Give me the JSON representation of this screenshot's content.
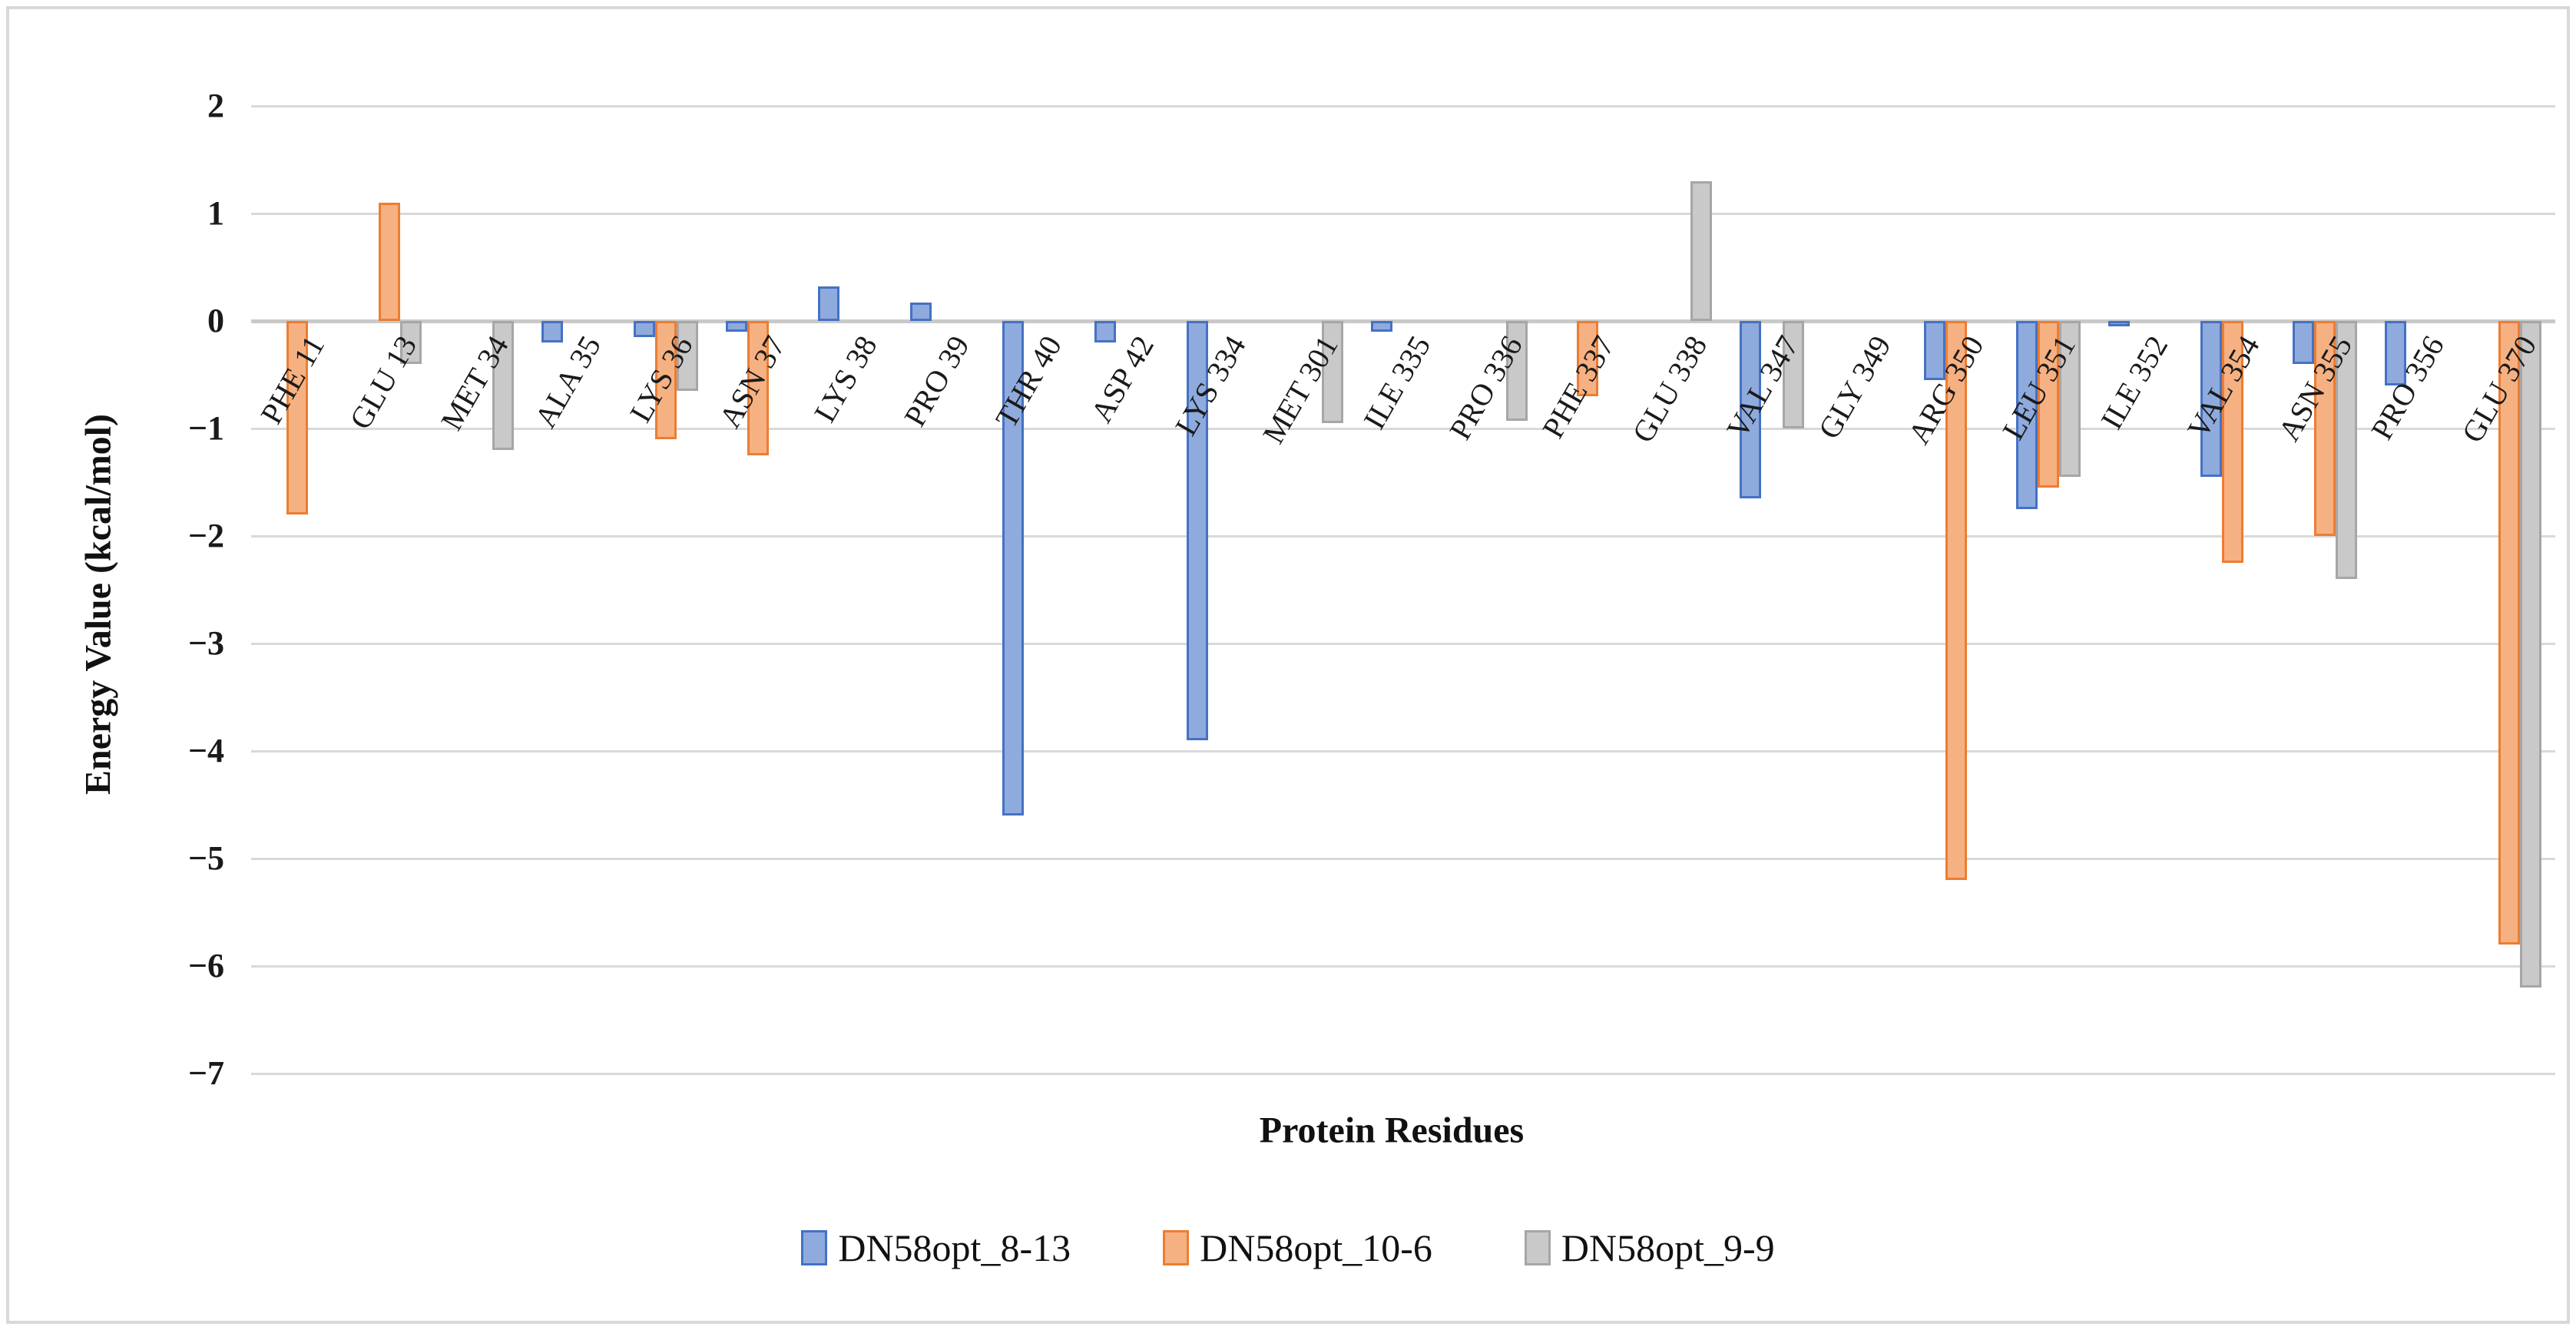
{
  "chart_data": {
    "type": "bar",
    "title": "",
    "xlabel": "Protein Residues",
    "ylabel": "Energy Value (kcal/mol)",
    "ylim": [
      -7,
      2
    ],
    "ytick_step": 1,
    "yticks": [
      2,
      1,
      0,
      -1,
      -2,
      -3,
      -4,
      -5,
      -6,
      -7
    ],
    "grid": true,
    "legend_position": "bottom",
    "categories": [
      "PHE 11",
      "GLU 13",
      "MET 34",
      "ALA 35",
      "LYS 36",
      "ASN 37",
      "LYS 38",
      "PRO 39",
      "THR 40",
      "ASP 42",
      "LYS 334",
      "MET 301",
      "ILE 335",
      "PRO 336",
      "PHE 337",
      "GLU 338",
      "VAL 347",
      "GLY 349",
      "ARG 350",
      "LEU 351",
      "ILE 352",
      "VAL 354",
      "ASN 355",
      "PRO 356",
      "GLU 370"
    ],
    "series": [
      {
        "name": "DN58opt_8-13",
        "fill": "#8FAADC",
        "border": "#4472C4",
        "values": [
          0,
          0,
          0,
          -0.2,
          -0.15,
          -0.1,
          0.32,
          0.17,
          -4.6,
          -0.2,
          -3.9,
          0,
          -0.1,
          0,
          0,
          0,
          -1.65,
          0,
          -0.55,
          -1.75,
          -0.05,
          -1.45,
          -0.4,
          -0.6,
          0
        ]
      },
      {
        "name": "DN58opt_10-6",
        "fill": "#F6B183",
        "border": "#ED7D31",
        "values": [
          -1.8,
          1.1,
          0,
          0,
          -1.1,
          -1.25,
          0,
          0,
          0,
          0,
          0,
          0,
          0,
          0,
          -0.7,
          0,
          0,
          0,
          -5.2,
          -1.55,
          0,
          -2.25,
          -2.0,
          0,
          -5.8
        ]
      },
      {
        "name": "DN58opt_9-9",
        "fill": "#C9C9C9",
        "border": "#A6A6A6",
        "values": [
          0,
          -0.4,
          -1.2,
          0,
          -0.65,
          0,
          0,
          0,
          0,
          0,
          0,
          -0.95,
          0,
          -0.93,
          0,
          1.3,
          -1.0,
          0,
          0,
          -1.45,
          0,
          0,
          -2.4,
          0,
          -6.2
        ]
      }
    ]
  },
  "colors": {
    "gridline": "#D9D9D9",
    "zero_line": "#C9C9C9",
    "frame_border": "#D9D9D9",
    "text": "#1A1A1A",
    "background": "#FFFFFF"
  }
}
